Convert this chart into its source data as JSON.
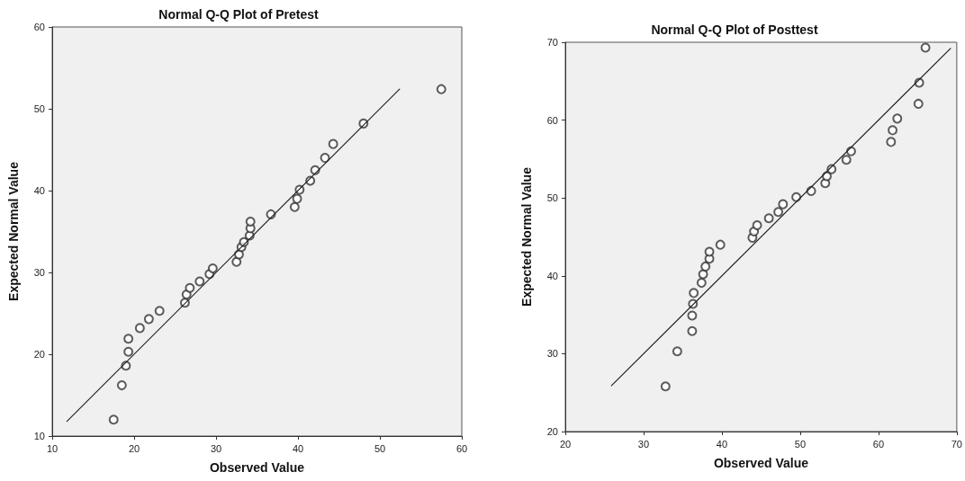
{
  "chart_data": [
    {
      "type": "scatter",
      "title": "Normal Q-Q Plot of Pretest",
      "xlabel": "Observed Value",
      "ylabel": "Expected Normal Value",
      "xlim": [
        10,
        60
      ],
      "xticks": [
        10,
        20,
        30,
        40,
        50,
        60
      ],
      "ylim": [
        10,
        60
      ],
      "yticks": [
        10,
        20,
        30,
        40,
        50,
        60
      ],
      "grid": false,
      "series": [
        {
          "color": "#333333",
          "marker": "circle",
          "x": [
            17.5,
            18.5,
            19.0,
            19.3,
            19.3,
            20.7,
            21.8,
            23.1,
            26.2,
            26.4,
            26.8,
            28.0,
            29.2,
            29.6,
            32.5,
            32.8,
            33.1,
            33.4,
            34.1,
            34.2,
            34.2,
            36.7,
            39.6,
            39.9,
            40.2,
            41.5,
            42.1,
            43.3,
            44.3,
            48.0,
            57.5
          ],
          "values": [
            12.0,
            16.2,
            18.6,
            20.3,
            21.9,
            23.2,
            24.3,
            25.3,
            26.3,
            27.3,
            28.1,
            28.9,
            29.8,
            30.5,
            31.3,
            32.2,
            33.1,
            33.7,
            34.5,
            35.4,
            36.2,
            37.1,
            38.0,
            39.0,
            40.1,
            41.2,
            42.5,
            44.0,
            45.7,
            48.2,
            52.4
          ]
        },
        {
          "type": "line",
          "color": "#222222",
          "marker": "none",
          "line_style": "solid",
          "x": [
            11.8,
            52.4
          ],
          "values": [
            11.8,
            52.4
          ]
        }
      ]
    },
    {
      "type": "scatter",
      "title": "Normal Q-Q Plot of Posttest",
      "xlabel": "Observed Value",
      "ylabel": "Expected Normal Value",
      "xlim": [
        20,
        70
      ],
      "xticks": [
        20,
        30,
        40,
        50,
        60,
        70
      ],
      "ylim": [
        20,
        70
      ],
      "yticks": [
        20,
        30,
        40,
        50,
        60,
        70
      ],
      "grid": false,
      "series": [
        {
          "color": "#333333",
          "marker": "circle",
          "x": [
            32.8,
            34.3,
            36.2,
            36.2,
            36.3,
            36.4,
            37.4,
            37.6,
            37.9,
            38.4,
            38.4,
            39.8,
            43.9,
            44.1,
            44.5,
            46.0,
            47.2,
            47.8,
            49.5,
            51.4,
            53.2,
            53.4,
            54.0,
            55.9,
            56.5,
            61.6,
            61.8,
            62.4,
            65.1,
            65.2,
            66.0
          ],
          "values": [
            25.8,
            30.3,
            32.9,
            34.9,
            36.4,
            37.8,
            39.1,
            40.2,
            41.2,
            42.2,
            43.1,
            44.0,
            44.9,
            45.7,
            46.5,
            47.4,
            48.2,
            49.2,
            50.1,
            50.9,
            51.9,
            52.8,
            53.7,
            54.9,
            56.0,
            57.2,
            58.7,
            60.2,
            62.1,
            64.8,
            69.3
          ]
        },
        {
          "type": "line",
          "color": "#222222",
          "marker": "none",
          "line_style": "solid",
          "x": [
            25.9,
            69.2
          ],
          "values": [
            25.9,
            69.2
          ]
        }
      ]
    }
  ]
}
